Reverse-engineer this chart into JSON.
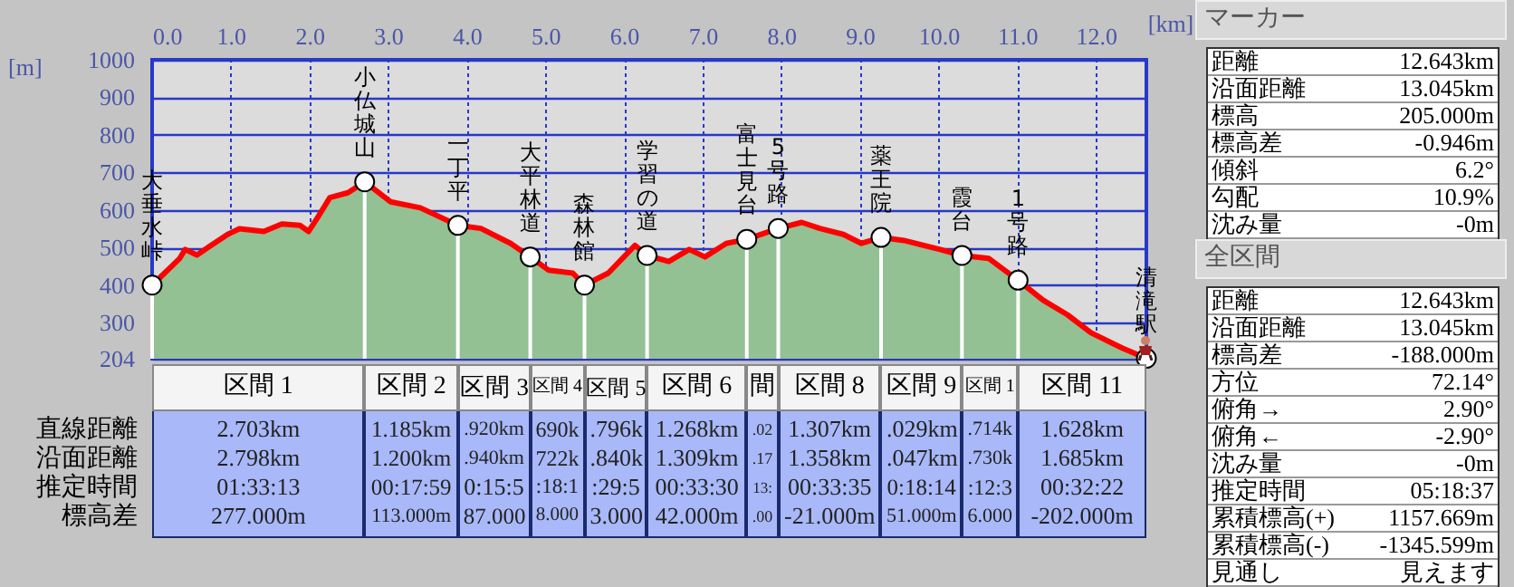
{
  "chart_data": [
    {
      "type": "area",
      "xlabel": "[km]",
      "ylabel": "[m]",
      "xlim": [
        0,
        12.643
      ],
      "ylim": [
        204,
        1000
      ],
      "xticks": [
        {
          "value": 0,
          "label": "0.0"
        },
        {
          "value": 1,
          "label": "1.0"
        },
        {
          "value": 2,
          "label": "2.0"
        },
        {
          "value": 3,
          "label": "3.0"
        },
        {
          "value": 4,
          "label": "4.0"
        },
        {
          "value": 5,
          "label": "5.0"
        },
        {
          "value": 6,
          "label": "6.0"
        },
        {
          "value": 7,
          "label": "7.0"
        },
        {
          "value": 8,
          "label": "8.0"
        },
        {
          "value": 9,
          "label": "9.0"
        },
        {
          "value": 10,
          "label": "10.0"
        },
        {
          "value": 11,
          "label": "11.0"
        },
        {
          "value": 12,
          "label": "12.0"
        }
      ],
      "yticks": [
        204,
        300,
        400,
        500,
        600,
        700,
        800,
        900,
        1000
      ],
      "grid": true,
      "series": [
        {
          "type": "area",
          "color": "#93c193",
          "x": [
            0,
            0.35,
            0.42,
            0.57,
            0.73,
            0.96,
            1.11,
            1.42,
            1.65,
            1.88,
            1.99,
            2.11,
            2.26,
            2.49,
            2.703,
            3.03,
            3.41,
            3.888,
            4.18,
            4.56,
            4.808,
            5.04,
            5.35,
            5.498,
            5.8,
            6.14,
            6.294,
            6.57,
            6.83,
            7.03,
            7.3,
            7.562,
            7.962,
            8.26,
            8.49,
            8.79,
            9.02,
            9.269,
            9.56,
            10.02,
            10.298,
            10.64,
            11.012,
            11.33,
            11.64,
            11.94,
            12.33,
            12.643
          ],
          "values": [
            400,
            471,
            495,
            480,
            503,
            535,
            550,
            543,
            563,
            559,
            543,
            582,
            633,
            646,
            675,
            622,
            606,
            559,
            551,
            511,
            475,
            440,
            432,
            400,
            432,
            506,
            479,
            463,
            495,
            475,
            511,
            522,
            551,
            567,
            551,
            535,
            511,
            527,
            519,
            495,
            479,
            471,
            413,
            360,
            321,
            273,
            233,
            205
          ]
        },
        {
          "type": "scatter",
          "color": "#ffffff",
          "marker": "circle",
          "x": [
            0,
            2.703,
            3.888,
            4.808,
            5.498,
            6.294,
            7.562,
            7.962,
            9.269,
            10.298,
            11.012,
            12.643
          ],
          "values": [
            400,
            675,
            559,
            475,
            400,
            479,
            522,
            551,
            527,
            479,
            413,
            205
          ]
        }
      ],
      "annotations": [
        {
          "text": "大垂水峠",
          "x": 0,
          "y": 400
        },
        {
          "text": "小仏城山",
          "x": 2.703,
          "y": 675
        },
        {
          "text": "一丁平",
          "x": 3.888,
          "y": 559
        },
        {
          "text": "大平林道",
          "x": 4.808,
          "y": 475
        },
        {
          "text": "森林館",
          "x": 5.498,
          "y": 400
        },
        {
          "text": "学習の道",
          "x": 6.294,
          "y": 479
        },
        {
          "text": "富士見台",
          "x": 7.562,
          "y": 522
        },
        {
          "text": "5号路",
          "x": 7.962,
          "y": 551
        },
        {
          "text": "薬王院",
          "x": 9.269,
          "y": 527
        },
        {
          "text": "霞台",
          "x": 10.298,
          "y": 479
        },
        {
          "text": "1号路",
          "x": 11.012,
          "y": 413
        },
        {
          "text": "清滝駅",
          "x": 12.643,
          "y": 205
        }
      ]
    },
    {
      "type": "other",
      "categories": [
        "区間 1",
        "区間 2",
        "区間 3",
        "区間 4",
        "区間 5",
        "区間 6",
        "間",
        "区間 8",
        "区間 9",
        "区間 1",
        "区間 11"
      ],
      "y_categories": [
        "直線距離",
        "沿面距離",
        "推定時間",
        "標高差"
      ],
      "cell_labels": [
        [
          "2.703km",
          "1.185km",
          ".920km",
          "690k",
          ".796k",
          "1.268km",
          ".02",
          "1.307km",
          ".029km",
          ".714k",
          "1.628km"
        ],
        [
          "2.798km",
          "1.200km",
          ".940km",
          "722k",
          ".840k",
          "1.309km",
          ".17",
          "1.358km",
          ".047km",
          ".730k",
          "1.685km"
        ],
        [
          "01:33:13",
          "00:17:59",
          "0:15:5",
          ":18:1",
          ":29:5",
          "00:33:30",
          "13:",
          "00:33:35",
          "0:18:14",
          ":12:3",
          "00:32:22"
        ],
        [
          "277.000m",
          "113.000m",
          "87.000",
          "8.000",
          "3.000",
          "42.000m",
          ".00",
          "-21.000m",
          "51.000m",
          "6.000",
          "-202.000m"
        ]
      ]
    },
    {
      "type": "other",
      "title": "マーカー",
      "categories": [
        "距離",
        "沿面距離",
        "標高",
        "標高差",
        "傾斜",
        "勾配",
        "沈み量"
      ],
      "value_labels": [
        "12.643km",
        "13.045km",
        "205.000m",
        "-0.946m",
        "6.2°",
        "10.9%",
        "-0m"
      ]
    },
    {
      "type": "other",
      "title": "全区間",
      "categories": [
        "距離",
        "沿面距離",
        "標高差",
        "方位",
        "俯角→",
        "俯角←",
        "沈み量",
        "推定時間",
        "累積標高(+)",
        "累積標高(-)",
        "見通し"
      ],
      "value_labels": [
        "12.643km",
        "13.045km",
        "-188.000m",
        "72.14°",
        "2.90°",
        "-2.90°",
        "-0m",
        "05:18:37",
        "1157.669m",
        "-1345.599m",
        "見えます"
      ]
    }
  ]
}
